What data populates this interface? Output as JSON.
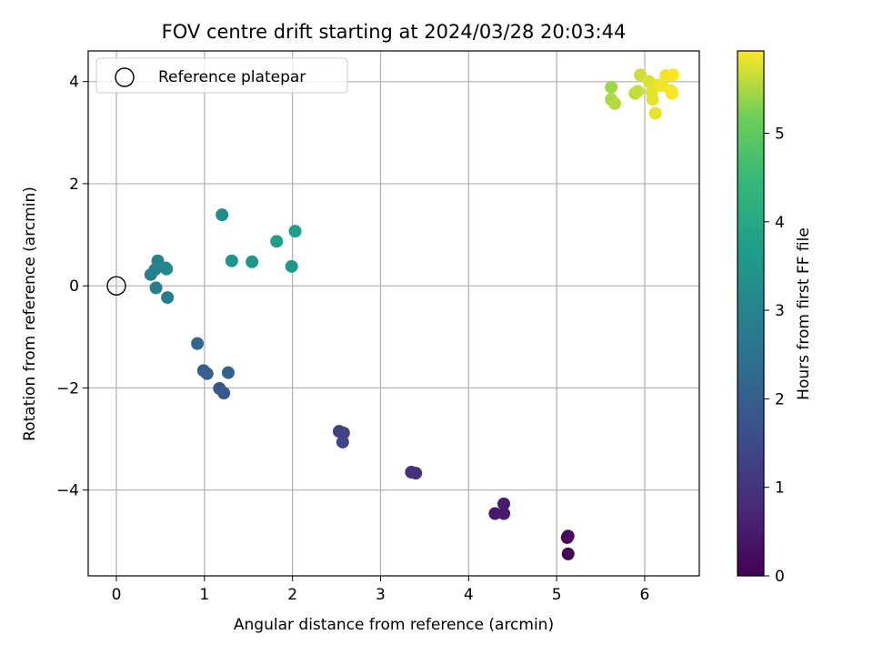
{
  "chart_data": {
    "type": "scatter",
    "title": "FOV centre drift starting at 2024/03/28 20:03:44",
    "xlabel": "Angular distance from reference (arcmin)",
    "ylabel": "Rotation from reference (arcmin)",
    "colorbar_label": "Hours from first FF file",
    "xlim": [
      -0.32,
      6.62
    ],
    "ylim": [
      -5.68,
      4.6
    ],
    "clim": [
      0,
      5.93
    ],
    "colormap": "viridis",
    "grid": true,
    "xticks": [
      0,
      1,
      2,
      3,
      4,
      5,
      6
    ],
    "yticks": [
      -4,
      -2,
      0,
      2,
      4
    ],
    "colorbar_ticks": [
      0,
      1,
      2,
      3,
      4,
      5
    ],
    "legend": {
      "position": "top-left",
      "entries": [
        "Reference platepar"
      ]
    },
    "reference_point": {
      "x": 0,
      "y": 0,
      "label": "Reference platepar"
    },
    "points": [
      {
        "x": 5.13,
        "y": -5.25,
        "t": 0.05
      },
      {
        "x": 5.12,
        "y": -4.93,
        "t": 0.15
      },
      {
        "x": 5.13,
        "y": -4.9,
        "t": 0.2
      },
      {
        "x": 4.3,
        "y": -4.46,
        "t": 0.45
      },
      {
        "x": 4.4,
        "y": -4.46,
        "t": 0.5
      },
      {
        "x": 4.4,
        "y": -4.27,
        "t": 0.55
      },
      {
        "x": 3.35,
        "y": -3.65,
        "t": 0.9
      },
      {
        "x": 3.4,
        "y": -3.67,
        "t": 0.95
      },
      {
        "x": 2.53,
        "y": -2.85,
        "t": 1.3
      },
      {
        "x": 2.58,
        "y": -2.88,
        "t": 1.35
      },
      {
        "x": 2.57,
        "y": -3.06,
        "t": 1.4
      },
      {
        "x": 1.17,
        "y": -2.01,
        "t": 1.8
      },
      {
        "x": 1.22,
        "y": -2.1,
        "t": 1.85
      },
      {
        "x": 0.99,
        "y": -1.66,
        "t": 1.95
      },
      {
        "x": 1.03,
        "y": -1.72,
        "t": 2.0
      },
      {
        "x": 1.27,
        "y": -1.7,
        "t": 2.05
      },
      {
        "x": 0.92,
        "y": -1.13,
        "t": 2.2
      },
      {
        "x": 0.58,
        "y": -0.23,
        "t": 2.8
      },
      {
        "x": 0.45,
        "y": -0.04,
        "t": 2.85
      },
      {
        "x": 0.39,
        "y": 0.22,
        "t": 2.9
      },
      {
        "x": 0.44,
        "y": 0.32,
        "t": 2.95
      },
      {
        "x": 0.47,
        "y": 0.49,
        "t": 3.0
      },
      {
        "x": 0.56,
        "y": 0.35,
        "t": 3.05
      },
      {
        "x": 0.57,
        "y": 0.33,
        "t": 3.1
      },
      {
        "x": 1.2,
        "y": 1.39,
        "t": 3.3
      },
      {
        "x": 1.31,
        "y": 0.49,
        "t": 3.45
      },
      {
        "x": 1.54,
        "y": 0.47,
        "t": 3.5
      },
      {
        "x": 1.99,
        "y": 0.38,
        "t": 3.55
      },
      {
        "x": 1.82,
        "y": 0.87,
        "t": 3.7
      },
      {
        "x": 2.03,
        "y": 1.07,
        "t": 3.75
      },
      {
        "x": 5.62,
        "y": 3.89,
        "t": 5.45
      },
      {
        "x": 5.62,
        "y": 3.65,
        "t": 5.5
      },
      {
        "x": 5.66,
        "y": 3.57,
        "t": 5.55
      },
      {
        "x": 5.89,
        "y": 3.77,
        "t": 5.6
      },
      {
        "x": 5.92,
        "y": 3.81,
        "t": 5.65
      },
      {
        "x": 5.95,
        "y": 4.13,
        "t": 5.7
      },
      {
        "x": 6.05,
        "y": 4.0,
        "t": 5.75
      },
      {
        "x": 6.08,
        "y": 3.8,
        "t": 5.78
      },
      {
        "x": 6.09,
        "y": 3.65,
        "t": 5.8
      },
      {
        "x": 6.12,
        "y": 3.38,
        "t": 5.82
      },
      {
        "x": 6.16,
        "y": 3.93,
        "t": 5.84
      },
      {
        "x": 6.2,
        "y": 3.92,
        "t": 5.86
      },
      {
        "x": 6.24,
        "y": 4.12,
        "t": 5.88
      },
      {
        "x": 6.3,
        "y": 3.82,
        "t": 5.9
      },
      {
        "x": 6.31,
        "y": 3.77,
        "t": 5.91
      },
      {
        "x": 6.32,
        "y": 4.13,
        "t": 5.93
      }
    ]
  }
}
